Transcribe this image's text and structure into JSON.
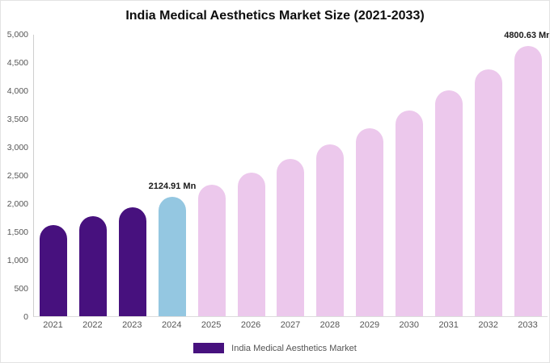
{
  "title": "India Medical Aesthetics Market Size (2021-2033)",
  "colors": {
    "historical": "#47117e",
    "current_year": "#94c7e1",
    "forecast": "#ecc8ec",
    "axis_line": "#cfcfcf",
    "tick_text": "#555555"
  },
  "y_axis": {
    "ticks": [
      "5,000",
      "4,500",
      "4,000",
      "3,500",
      "3,000",
      "2,500",
      "2,000",
      "1,500",
      "1,000",
      "500",
      "0"
    ]
  },
  "legend": {
    "label": "India Medical Aesthetics Market",
    "swatch_color": "#47117e"
  },
  "chart_data": {
    "type": "bar",
    "title": "India Medical Aesthetics Market Size (2021-2033)",
    "xlabel": "",
    "ylabel": "",
    "ylim": [
      0,
      5000
    ],
    "grid": false,
    "legend_position": "bottom-center",
    "categories": [
      "2021",
      "2022",
      "2023",
      "2024",
      "2025",
      "2026",
      "2027",
      "2028",
      "2029",
      "2030",
      "2031",
      "2032",
      "2033"
    ],
    "values": [
      1620,
      1770,
      1940,
      2124.91,
      2330,
      2550,
      2790,
      3050,
      3340,
      3660,
      4010,
      4390,
      4800.63
    ],
    "bar_colors": [
      "#47117e",
      "#47117e",
      "#47117e",
      "#94c7e1",
      "#ecc8ec",
      "#ecc8ec",
      "#ecc8ec",
      "#ecc8ec",
      "#ecc8ec",
      "#ecc8ec",
      "#ecc8ec",
      "#ecc8ec",
      "#ecc8ec"
    ],
    "annotations": [
      {
        "index": 3,
        "text": "2124.91 Mn"
      },
      {
        "index": 12,
        "text": "4800.63 Mn"
      }
    ],
    "series": [
      {
        "name": "India Medical Aesthetics Market",
        "values": [
          1620,
          1770,
          1940,
          2124.91,
          2330,
          2550,
          2790,
          3050,
          3340,
          3660,
          4010,
          4390,
          4800.63
        ]
      }
    ]
  }
}
